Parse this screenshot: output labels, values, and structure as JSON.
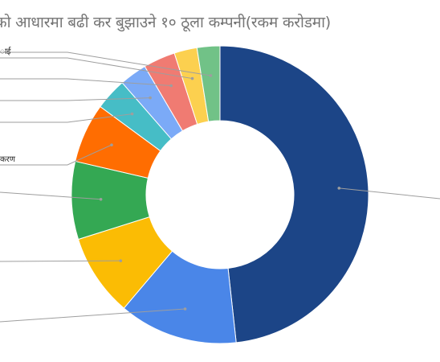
{
  "chart_data": {
    "type": "pie",
    "donut": true,
    "title": "को आधारमा बढी कर बुझाउने १० ठूला कम्पनी(रकम करोडमा)",
    "slices": [
      {
        "label": "",
        "value": 48.5,
        "color": "#1c4587"
      },
      {
        "label": "",
        "value": 13.0,
        "color": "#4a86e8"
      },
      {
        "label": "",
        "value": 9.0,
        "color": "#fbbc04"
      },
      {
        "label": "",
        "value": 8.5,
        "color": "#34a853"
      },
      {
        "label": "करण",
        "value": 6.5,
        "color": "#ff6d01"
      },
      {
        "label": "",
        "value": 3.5,
        "color": "#46bdc6"
      },
      {
        "label": "",
        "value": 3.0,
        "color": "#7baaf7"
      },
      {
        "label": "",
        "value": 3.5,
        "color": "#f07b72"
      },
      {
        "label": "",
        "value": 2.5,
        "color": "#fcd04f"
      },
      {
        "label": "ाई",
        "value": 2.5,
        "color": "#71c287"
      }
    ],
    "legend": "none"
  }
}
